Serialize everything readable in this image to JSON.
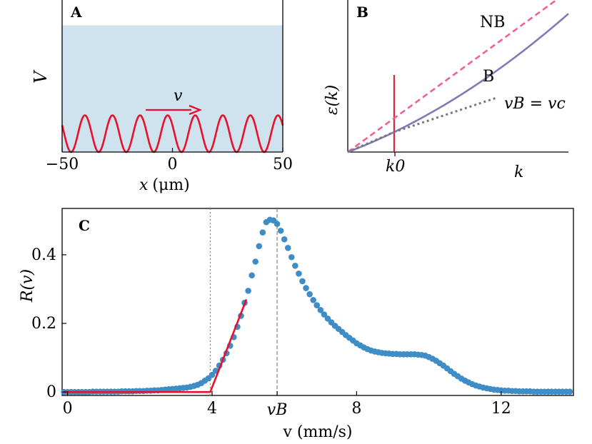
{
  "chart_data": [
    {
      "panel": "A",
      "type": "line",
      "xlabel_var": "x",
      "xlabel_unit": "(μm)",
      "ylabel": "V",
      "xlim": [
        -50,
        50
      ],
      "xticks": [
        "−50",
        "0",
        "50"
      ],
      "xtick_values": [
        -50,
        0,
        50
      ],
      "ylim": [
        0,
        1.2
      ],
      "band_top": 1.0,
      "wave": {
        "period": 12.5,
        "amplitude": 0.145,
        "offset": 0.145
      },
      "arrow_label": "v",
      "colors": {
        "band": "#cfe3ef",
        "wave": "#e8102a",
        "arrow": "#e8102a"
      }
    },
    {
      "panel": "B",
      "type": "line",
      "xlabel": "k",
      "ylabel": "ε(k)",
      "xlim": [
        0,
        1
      ],
      "ylim": [
        0,
        1
      ],
      "xticks": [
        "k0"
      ],
      "xtick_values": [
        0.21
      ],
      "series": [
        {
          "name": "NB",
          "style": "dashed",
          "color": "#ee6096"
        },
        {
          "name": "B",
          "style": "solid",
          "color": "#8478b8"
        },
        {
          "name": "vB = vc",
          "style": "dotted",
          "color": "#777777"
        }
      ],
      "marker_line": {
        "x": 0.21,
        "color": "#e8102a"
      }
    },
    {
      "panel": "C",
      "type": "scatter",
      "xlabel": "v (mm/s)",
      "ylabel": "R(v)",
      "xlim": [
        -0.15,
        14.0
      ],
      "ylim": [
        -0.01,
        0.535
      ],
      "xticks": [
        "0",
        "4",
        "8",
        "12"
      ],
      "xtick_values": [
        0,
        4,
        8,
        12
      ],
      "extra_xtick": {
        "label": "vB",
        "value": 5.8
      },
      "yticks": [
        "0",
        "0.2",
        "0.4"
      ],
      "ytick_values": [
        0,
        0.2,
        0.4
      ],
      "vlines": [
        {
          "x": 3.95,
          "style": "dotted",
          "color": "#888888"
        },
        {
          "x": 5.8,
          "style": "dashed",
          "color": "#888888"
        }
      ],
      "fit_line": {
        "color": "#e8102a",
        "points": [
          [
            -0.1,
            0.0
          ],
          [
            3.95,
            0.0
          ],
          [
            4.95,
            0.27
          ]
        ]
      },
      "point_color": "#3f8dc6",
      "points": [
        [
          -0.1,
          0.0
        ],
        [
          0.0,
          0.0
        ],
        [
          0.1,
          0.0
        ],
        [
          0.2,
          0.0
        ],
        [
          0.3,
          0.0
        ],
        [
          0.4,
          0.0
        ],
        [
          0.5,
          0.0
        ],
        [
          0.6,
          0.0
        ],
        [
          0.7,
          0.001
        ],
        [
          0.8,
          0.001
        ],
        [
          0.9,
          0.001
        ],
        [
          1.0,
          0.001
        ],
        [
          1.1,
          0.001
        ],
        [
          1.2,
          0.001
        ],
        [
          1.3,
          0.001
        ],
        [
          1.4,
          0.001
        ],
        [
          1.5,
          0.002
        ],
        [
          1.6,
          0.002
        ],
        [
          1.7,
          0.002
        ],
        [
          1.8,
          0.002
        ],
        [
          1.9,
          0.003
        ],
        [
          2.0,
          0.003
        ],
        [
          2.1,
          0.003
        ],
        [
          2.2,
          0.004
        ],
        [
          2.3,
          0.004
        ],
        [
          2.4,
          0.005
        ],
        [
          2.5,
          0.005
        ],
        [
          2.6,
          0.006
        ],
        [
          2.7,
          0.007
        ],
        [
          2.8,
          0.008
        ],
        [
          2.9,
          0.009
        ],
        [
          3.0,
          0.01
        ],
        [
          3.1,
          0.011
        ],
        [
          3.2,
          0.012
        ],
        [
          3.3,
          0.013
        ],
        [
          3.4,
          0.015
        ],
        [
          3.5,
          0.018
        ],
        [
          3.6,
          0.021
        ],
        [
          3.7,
          0.026
        ],
        [
          3.8,
          0.033
        ],
        [
          3.9,
          0.04
        ],
        [
          4.0,
          0.05
        ],
        [
          4.1,
          0.062
        ],
        [
          4.2,
          0.077
        ],
        [
          4.3,
          0.094
        ],
        [
          4.4,
          0.113
        ],
        [
          4.5,
          0.135
        ],
        [
          4.6,
          0.16
        ],
        [
          4.7,
          0.19
        ],
        [
          4.8,
          0.222
        ],
        [
          4.9,
          0.26
        ],
        [
          5.0,
          0.295
        ],
        [
          5.1,
          0.34
        ],
        [
          5.2,
          0.38
        ],
        [
          5.3,
          0.425
        ],
        [
          5.4,
          0.465
        ],
        [
          5.5,
          0.495
        ],
        [
          5.6,
          0.502
        ],
        [
          5.7,
          0.5
        ],
        [
          5.8,
          0.49
        ],
        [
          5.9,
          0.47
        ],
        [
          6.0,
          0.445
        ],
        [
          6.1,
          0.42
        ],
        [
          6.2,
          0.393
        ],
        [
          6.3,
          0.368
        ],
        [
          6.4,
          0.345
        ],
        [
          6.5,
          0.323
        ],
        [
          6.6,
          0.303
        ],
        [
          6.7,
          0.285
        ],
        [
          6.8,
          0.268
        ],
        [
          6.9,
          0.253
        ],
        [
          7.0,
          0.239
        ],
        [
          7.1,
          0.226
        ],
        [
          7.2,
          0.214
        ],
        [
          7.3,
          0.203
        ],
        [
          7.4,
          0.193
        ],
        [
          7.5,
          0.184
        ],
        [
          7.6,
          0.175
        ],
        [
          7.7,
          0.166
        ],
        [
          7.8,
          0.158
        ],
        [
          7.9,
          0.15
        ],
        [
          8.0,
          0.142
        ],
        [
          8.1,
          0.136
        ],
        [
          8.2,
          0.13
        ],
        [
          8.3,
          0.125
        ],
        [
          8.4,
          0.121
        ],
        [
          8.5,
          0.118
        ],
        [
          8.6,
          0.116
        ],
        [
          8.7,
          0.114
        ],
        [
          8.8,
          0.113
        ],
        [
          8.9,
          0.112
        ],
        [
          9.0,
          0.111
        ],
        [
          9.1,
          0.111
        ],
        [
          9.2,
          0.11
        ],
        [
          9.3,
          0.11
        ],
        [
          9.4,
          0.11
        ],
        [
          9.5,
          0.11
        ],
        [
          9.6,
          0.11
        ],
        [
          9.7,
          0.109
        ],
        [
          9.8,
          0.108
        ],
        [
          9.9,
          0.106
        ],
        [
          10.0,
          0.102
        ],
        [
          10.1,
          0.097
        ],
        [
          10.2,
          0.091
        ],
        [
          10.3,
          0.084
        ],
        [
          10.4,
          0.077
        ],
        [
          10.5,
          0.069
        ],
        [
          10.6,
          0.061
        ],
        [
          10.7,
          0.053
        ],
        [
          10.8,
          0.046
        ],
        [
          10.9,
          0.039
        ],
        [
          11.0,
          0.033
        ],
        [
          11.1,
          0.028
        ],
        [
          11.2,
          0.023
        ],
        [
          11.3,
          0.019
        ],
        [
          11.4,
          0.016
        ],
        [
          11.5,
          0.013
        ],
        [
          11.6,
          0.011
        ],
        [
          11.7,
          0.009
        ],
        [
          11.8,
          0.007
        ],
        [
          11.9,
          0.006
        ],
        [
          12.0,
          0.005
        ],
        [
          12.1,
          0.004
        ],
        [
          12.2,
          0.004
        ],
        [
          12.3,
          0.003
        ],
        [
          12.4,
          0.003
        ],
        [
          12.5,
          0.002
        ],
        [
          12.6,
          0.002
        ],
        [
          12.7,
          0.002
        ],
        [
          12.8,
          0.002
        ],
        [
          12.9,
          0.001
        ],
        [
          13.0,
          0.001
        ],
        [
          13.1,
          0.001
        ],
        [
          13.2,
          0.001
        ],
        [
          13.3,
          0.001
        ],
        [
          13.4,
          0.001
        ],
        [
          13.5,
          0.001
        ],
        [
          13.6,
          0.001
        ],
        [
          13.7,
          0.001
        ],
        [
          13.8,
          0.001
        ],
        [
          13.9,
          0.001
        ]
      ]
    }
  ],
  "panel_labels": {
    "a": "A",
    "b": "B",
    "c": "C"
  },
  "panel_b_labels": {
    "nb": "NB",
    "b": "B",
    "vb_eq": "vB = vc"
  }
}
